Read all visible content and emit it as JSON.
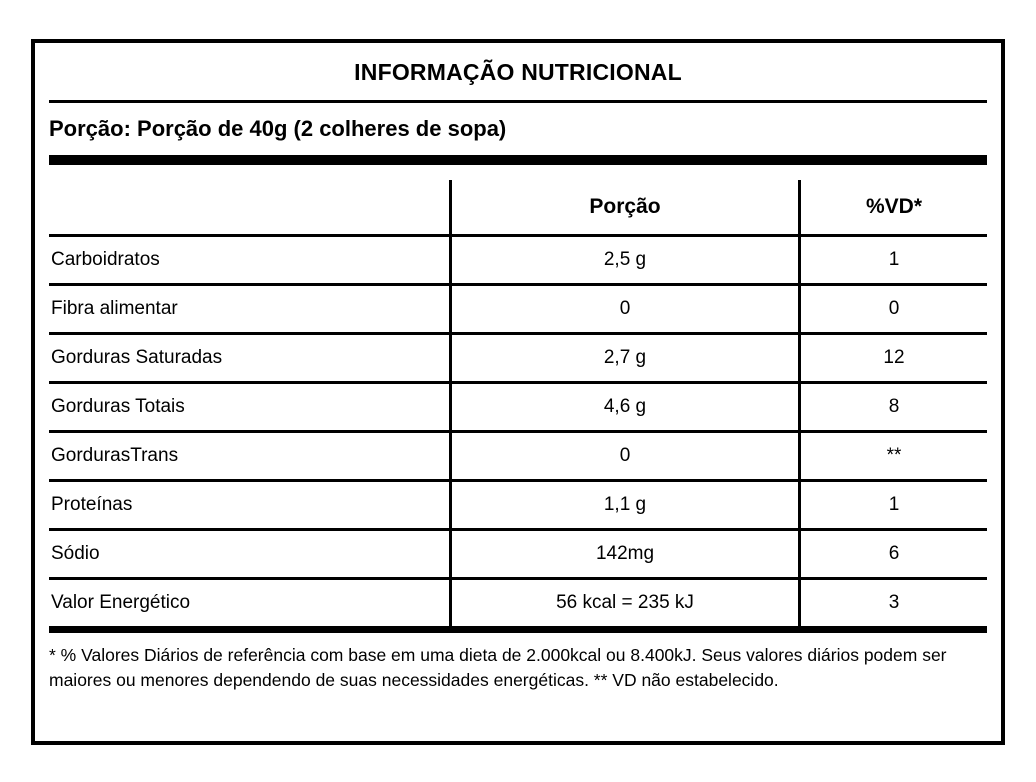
{
  "label": {
    "title": "INFORMAÇÃO NUTRICIONAL",
    "serving_line": "Porção: Porção de 40g (2 colheres de sopa)",
    "columns": [
      "",
      "Porção",
      "%VD*"
    ],
    "rows": [
      {
        "name": "Carboidratos",
        "amount": "2,5 g",
        "dv": "1"
      },
      {
        "name": "Fibra alimentar",
        "amount": "0",
        "dv": "0"
      },
      {
        "name": "Gorduras Saturadas",
        "amount": "2,7 g",
        "dv": "12"
      },
      {
        "name": "Gorduras Totais",
        "amount": "4,6 g",
        "dv": "8"
      },
      {
        "name": "GordurasTrans",
        "amount": "0",
        "dv": "**"
      },
      {
        "name": "Proteínas",
        "amount": "1,1 g",
        "dv": "1"
      },
      {
        "name": "Sódio",
        "amount": "142mg",
        "dv": "6"
      },
      {
        "name": "Valor Energético",
        "amount": "56 kcal = 235 kJ",
        "dv": "3"
      }
    ],
    "footnote": "* % Valores Diários de referência com base em uma dieta de 2.000kcal ou 8.400kJ. Seus valores diários podem ser maiores ou menores dependendo de suas necessidades energéticas. ** VD não estabelecido.",
    "colors": {
      "text": "#000000",
      "background": "#ffffff"
    }
  }
}
